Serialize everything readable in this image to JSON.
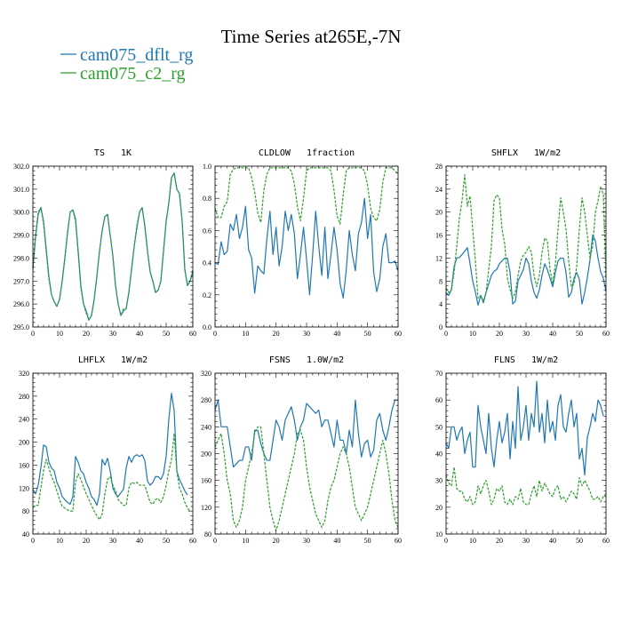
{
  "title": "Time Series at265E,-7N",
  "legend": [
    {
      "name": "cam075_dflt_rg",
      "color": "#1f77b4",
      "dash": ""
    },
    {
      "name": "cam075_c2_rg",
      "color": "#2ca02c",
      "dash": "3,1.5"
    }
  ],
  "chart_data": [
    {
      "type": "line",
      "title": "TS   1K",
      "xlim": [
        0,
        60
      ],
      "ylim": [
        295.0,
        302.0
      ],
      "xticks": [
        0,
        10,
        20,
        30,
        40,
        50,
        60
      ],
      "yticks": [
        295.0,
        296.0,
        297.0,
        298.0,
        299.0,
        300.0,
        301.0,
        302.0
      ],
      "ytick_labels": [
        "295.0",
        "296.0",
        "297.0",
        "298.0",
        "299.0",
        "300.0",
        "301.0",
        "302.0"
      ],
      "series": [
        {
          "name": "cam075_dflt_rg",
          "values": [
            297.5,
            298.9,
            299.9,
            300.2,
            299.6,
            298.4,
            297.2,
            296.4,
            296.1,
            295.9,
            296.2,
            297.0,
            298.0,
            299.1,
            300.0,
            300.1,
            299.7,
            298.3,
            296.8,
            296.0,
            295.7,
            295.3,
            295.5,
            296.2,
            297.2,
            298.3,
            299.2,
            299.8,
            299.9,
            299.0,
            298.1,
            296.8,
            296.0,
            295.5,
            295.7,
            295.8,
            296.5,
            297.5,
            298.5,
            299.3,
            300.0,
            300.2,
            299.4,
            298.3,
            297.4,
            297.0,
            296.5,
            296.6,
            297.0,
            298.3,
            299.6,
            300.4,
            301.5,
            301.7,
            301.0,
            300.8,
            299.6,
            297.5,
            296.8,
            297.0,
            297.4
          ]
        },
        {
          "name": "cam075_c2_rg",
          "values": [
            297.6,
            299.0,
            300.0,
            300.2,
            299.5,
            298.3,
            297.1,
            296.4,
            296.1,
            295.9,
            296.2,
            297.0,
            298.0,
            299.1,
            300.0,
            300.1,
            299.6,
            298.2,
            296.7,
            296.0,
            295.6,
            295.3,
            295.5,
            296.2,
            297.2,
            298.3,
            299.2,
            299.8,
            299.9,
            299.0,
            298.1,
            296.8,
            296.0,
            295.5,
            295.8,
            295.8,
            296.5,
            297.5,
            298.5,
            299.4,
            300.0,
            300.2,
            299.4,
            298.3,
            297.4,
            297.0,
            296.5,
            296.6,
            297.0,
            298.3,
            299.6,
            300.4,
            301.5,
            301.7,
            301.0,
            300.8,
            299.6,
            297.5,
            296.8,
            297.0,
            297.5
          ]
        }
      ]
    },
    {
      "type": "line",
      "title": "CLDLOW   1fraction",
      "xlim": [
        0,
        60
      ],
      "ylim": [
        0.0,
        1.0
      ],
      "xticks": [
        0,
        10,
        20,
        30,
        40,
        50,
        60
      ],
      "yticks": [
        0.0,
        0.2,
        0.4,
        0.6,
        0.8,
        1.0
      ],
      "ytick_labels": [
        "0.0",
        "0.2",
        "0.4",
        "0.6",
        "0.8",
        "1.0"
      ],
      "series": [
        {
          "name": "cam075_dflt_rg",
          "values": [
            0.4,
            0.39,
            0.53,
            0.45,
            0.47,
            0.64,
            0.6,
            0.7,
            0.55,
            0.62,
            0.75,
            0.48,
            0.43,
            0.21,
            0.38,
            0.35,
            0.33,
            0.55,
            0.72,
            0.45,
            0.62,
            0.38,
            0.5,
            0.72,
            0.6,
            0.7,
            0.58,
            0.3,
            0.45,
            0.62,
            0.42,
            0.2,
            0.45,
            0.72,
            0.5,
            0.32,
            0.62,
            0.3,
            0.45,
            0.62,
            0.48,
            0.27,
            0.18,
            0.35,
            0.6,
            0.45,
            0.35,
            0.58,
            0.65,
            0.8,
            0.55,
            0.7,
            0.34,
            0.22,
            0.3,
            0.5,
            0.58,
            0.4,
            0.4,
            0.41,
            0.35
          ]
        },
        {
          "name": "cam075_c2_rg",
          "values": [
            0.74,
            0.68,
            0.68,
            0.75,
            0.78,
            0.95,
            0.98,
            0.99,
            0.99,
            0.99,
            0.99,
            0.99,
            0.93,
            0.84,
            0.71,
            0.65,
            0.85,
            0.95,
            0.99,
            0.99,
            0.99,
            0.99,
            0.99,
            0.99,
            0.99,
            0.97,
            0.89,
            0.75,
            0.66,
            0.8,
            0.97,
            0.99,
            0.99,
            0.99,
            0.99,
            0.99,
            0.99,
            0.99,
            0.97,
            0.85,
            0.69,
            0.64,
            0.82,
            0.97,
            0.99,
            0.99,
            0.99,
            0.99,
            0.99,
            0.97,
            0.88,
            0.74,
            0.68,
            0.66,
            0.73,
            0.9,
            0.99,
            0.99,
            0.99,
            0.97,
            0.95
          ]
        }
      ]
    },
    {
      "type": "line",
      "title": "SHFLX   1W/m2",
      "xlim": [
        0,
        60
      ],
      "ylim": [
        0,
        28
      ],
      "xticks": [
        0,
        10,
        20,
        30,
        40,
        50,
        60
      ],
      "yticks": [
        0,
        4,
        8,
        12,
        16,
        20,
        24,
        28
      ],
      "ytick_labels": [
        "0",
        "4",
        "8",
        "12",
        "16",
        "20",
        "24",
        "28"
      ],
      "series": [
        {
          "name": "cam075_dflt_rg",
          "values": [
            6.0,
            5.5,
            6.5,
            10.5,
            12.0,
            12.1,
            12.6,
            13.2,
            13.8,
            11.0,
            8.0,
            6.1,
            3.8,
            5.5,
            4.2,
            6.0,
            7.5,
            9.0,
            9.7,
            10.0,
            11.0,
            11.5,
            12.0,
            12.0,
            9.5,
            4.0,
            4.5,
            8.0,
            9.0,
            10.0,
            12.0,
            11.0,
            8.0,
            6.0,
            5.0,
            6.5,
            9.0,
            11.0,
            10.0,
            8.5,
            7.0,
            9.5,
            11.5,
            12.0,
            12.0,
            9.5,
            5.2,
            6.0,
            8.5,
            9.5,
            8.3,
            4.0,
            6.0,
            8.6,
            11.7,
            16.0,
            15.0,
            12.0,
            9.6,
            8.5,
            6.2
          ]
        },
        {
          "name": "cam075_c2_rg",
          "values": [
            6.8,
            6.0,
            6.5,
            9.5,
            14.0,
            19.0,
            22.0,
            26.5,
            21.0,
            22.8,
            17.0,
            11.5,
            5.0,
            5.5,
            4.5,
            6.0,
            10.0,
            14.0,
            22.0,
            23.0,
            22.5,
            17.0,
            14.5,
            8.5,
            6.5,
            5.0,
            6.0,
            9.0,
            11.5,
            12.5,
            13.0,
            14.0,
            13.0,
            9.0,
            7.0,
            9.0,
            13.0,
            15.5,
            15.0,
            10.0,
            7.5,
            11.0,
            17.0,
            22.5,
            20.0,
            17.0,
            11.5,
            7.0,
            7.5,
            10.5,
            17.0,
            22.5,
            20.0,
            16.0,
            12.0,
            14.0,
            20.0,
            22.0,
            24.5,
            23.0,
            8.8
          ]
        }
      ]
    },
    {
      "type": "line",
      "title": "LHFLX   1W/m2",
      "xlim": [
        0,
        60
      ],
      "ylim": [
        40,
        320
      ],
      "xticks": [
        0,
        10,
        20,
        30,
        40,
        50,
        60
      ],
      "yticks": [
        40,
        80,
        120,
        160,
        200,
        240,
        280,
        320
      ],
      "ytick_labels": [
        "40",
        "80",
        "120",
        "160",
        "200",
        "240",
        "280",
        "320"
      ],
      "series": [
        {
          "name": "cam075_dflt_rg",
          "values": [
            118,
            110,
            125,
            155,
            195,
            192,
            165,
            155,
            150,
            130,
            120,
            105,
            100,
            95,
            92,
            105,
            175,
            165,
            150,
            145,
            130,
            120,
            105,
            100,
            90,
            110,
            170,
            160,
            172,
            150,
            120,
            110,
            105,
            112,
            118,
            155,
            175,
            165,
            175,
            178,
            175,
            178,
            168,
            132,
            125,
            130,
            140,
            140,
            135,
            145,
            175,
            240,
            285,
            255,
            150,
            135,
            125,
            115,
            108
          ]
        },
        {
          "name": "cam075_c2_rg",
          "values": [
            86,
            90,
            90,
            120,
            150,
            170,
            155,
            140,
            130,
            115,
            100,
            88,
            85,
            82,
            80,
            80,
            130,
            145,
            135,
            122,
            110,
            100,
            90,
            80,
            72,
            65,
            75,
            110,
            135,
            140,
            125,
            115,
            100,
            95,
            90,
            90,
            120,
            130,
            128,
            130,
            125,
            125,
            125,
            110,
            95,
            92,
            100,
            102,
            95,
            105,
            125,
            150,
            170,
            215,
            150,
            120,
            110,
            95,
            85,
            80
          ]
        }
      ]
    },
    {
      "type": "line",
      "title": "FSNS   1.0W/m2",
      "xlim": [
        0,
        60
      ],
      "ylim": [
        80,
        320
      ],
      "xticks": [
        0,
        10,
        20,
        30,
        40,
        50,
        60
      ],
      "yticks": [
        80,
        120,
        160,
        200,
        240,
        280,
        320
      ],
      "ytick_labels": [
        "80",
        "120",
        "160",
        "200",
        "240",
        "280",
        "320"
      ],
      "series": [
        {
          "name": "cam075_dflt_rg",
          "values": [
            265,
            280,
            240,
            240,
            240,
            210,
            180,
            185,
            190,
            190,
            210,
            210,
            190,
            235,
            235,
            215,
            200,
            190,
            190,
            220,
            250,
            240,
            220,
            250,
            260,
            270,
            250,
            220,
            240,
            250,
            275,
            270,
            265,
            260,
            265,
            240,
            250,
            250,
            230,
            210,
            250,
            220,
            220,
            200,
            235,
            210,
            280,
            230,
            195,
            215,
            220,
            195,
            205,
            250,
            260,
            235,
            220,
            240,
            265,
            280,
            280
          ]
        },
        {
          "name": "cam075_c2_rg",
          "values": [
            210,
            220,
            230,
            200,
            160,
            140,
            100,
            90,
            100,
            120,
            160,
            180,
            200,
            230,
            240,
            240,
            200,
            160,
            120,
            100,
            85,
            100,
            120,
            140,
            160,
            180,
            200,
            230,
            235,
            220,
            180,
            150,
            130,
            110,
            100,
            90,
            100,
            130,
            150,
            160,
            180,
            200,
            210,
            200,
            180,
            150,
            120,
            110,
            100,
            110,
            120,
            140,
            160,
            180,
            200,
            220,
            200,
            170,
            130,
            100,
            90
          ]
        }
      ]
    },
    {
      "type": "line",
      "title": "FLNS   1W/m2",
      "xlim": [
        0,
        60
      ],
      "ylim": [
        10,
        70
      ],
      "xticks": [
        0,
        10,
        20,
        30,
        40,
        50,
        60
      ],
      "yticks": [
        10,
        20,
        30,
        40,
        50,
        60,
        70
      ],
      "ytick_labels": [
        "10",
        "20",
        "30",
        "40",
        "50",
        "60",
        "70"
      ],
      "series": [
        {
          "name": "cam075_dflt_rg",
          "values": [
            44,
            42,
            50,
            50,
            45,
            48,
            50,
            40,
            45,
            48,
            35,
            35,
            58,
            50,
            45,
            40,
            55,
            42,
            35,
            45,
            52,
            44,
            48,
            55,
            38,
            52,
            42,
            65,
            45,
            50,
            58,
            45,
            55,
            50,
            67,
            48,
            55,
            44,
            60,
            48,
            52,
            45,
            58,
            62,
            50,
            48,
            55,
            60,
            50,
            55,
            38,
            42,
            32,
            46,
            50,
            55,
            52,
            60,
            58,
            54
          ]
        },
        {
          "name": "cam075_c2_rg",
          "values": [
            32,
            29,
            28,
            35,
            27,
            26,
            26,
            23,
            22,
            24,
            21,
            22,
            28,
            25,
            28,
            30,
            26,
            21,
            23,
            27,
            26,
            28,
            22,
            21,
            23,
            21,
            24,
            23,
            27,
            22,
            21,
            21,
            25,
            28,
            24,
            30,
            26,
            29,
            27,
            25,
            24,
            27,
            28,
            23,
            24,
            22,
            24,
            26,
            25,
            23,
            31,
            28,
            30,
            28,
            26,
            23,
            23,
            24,
            22,
            24,
            25
          ]
        }
      ]
    }
  ]
}
